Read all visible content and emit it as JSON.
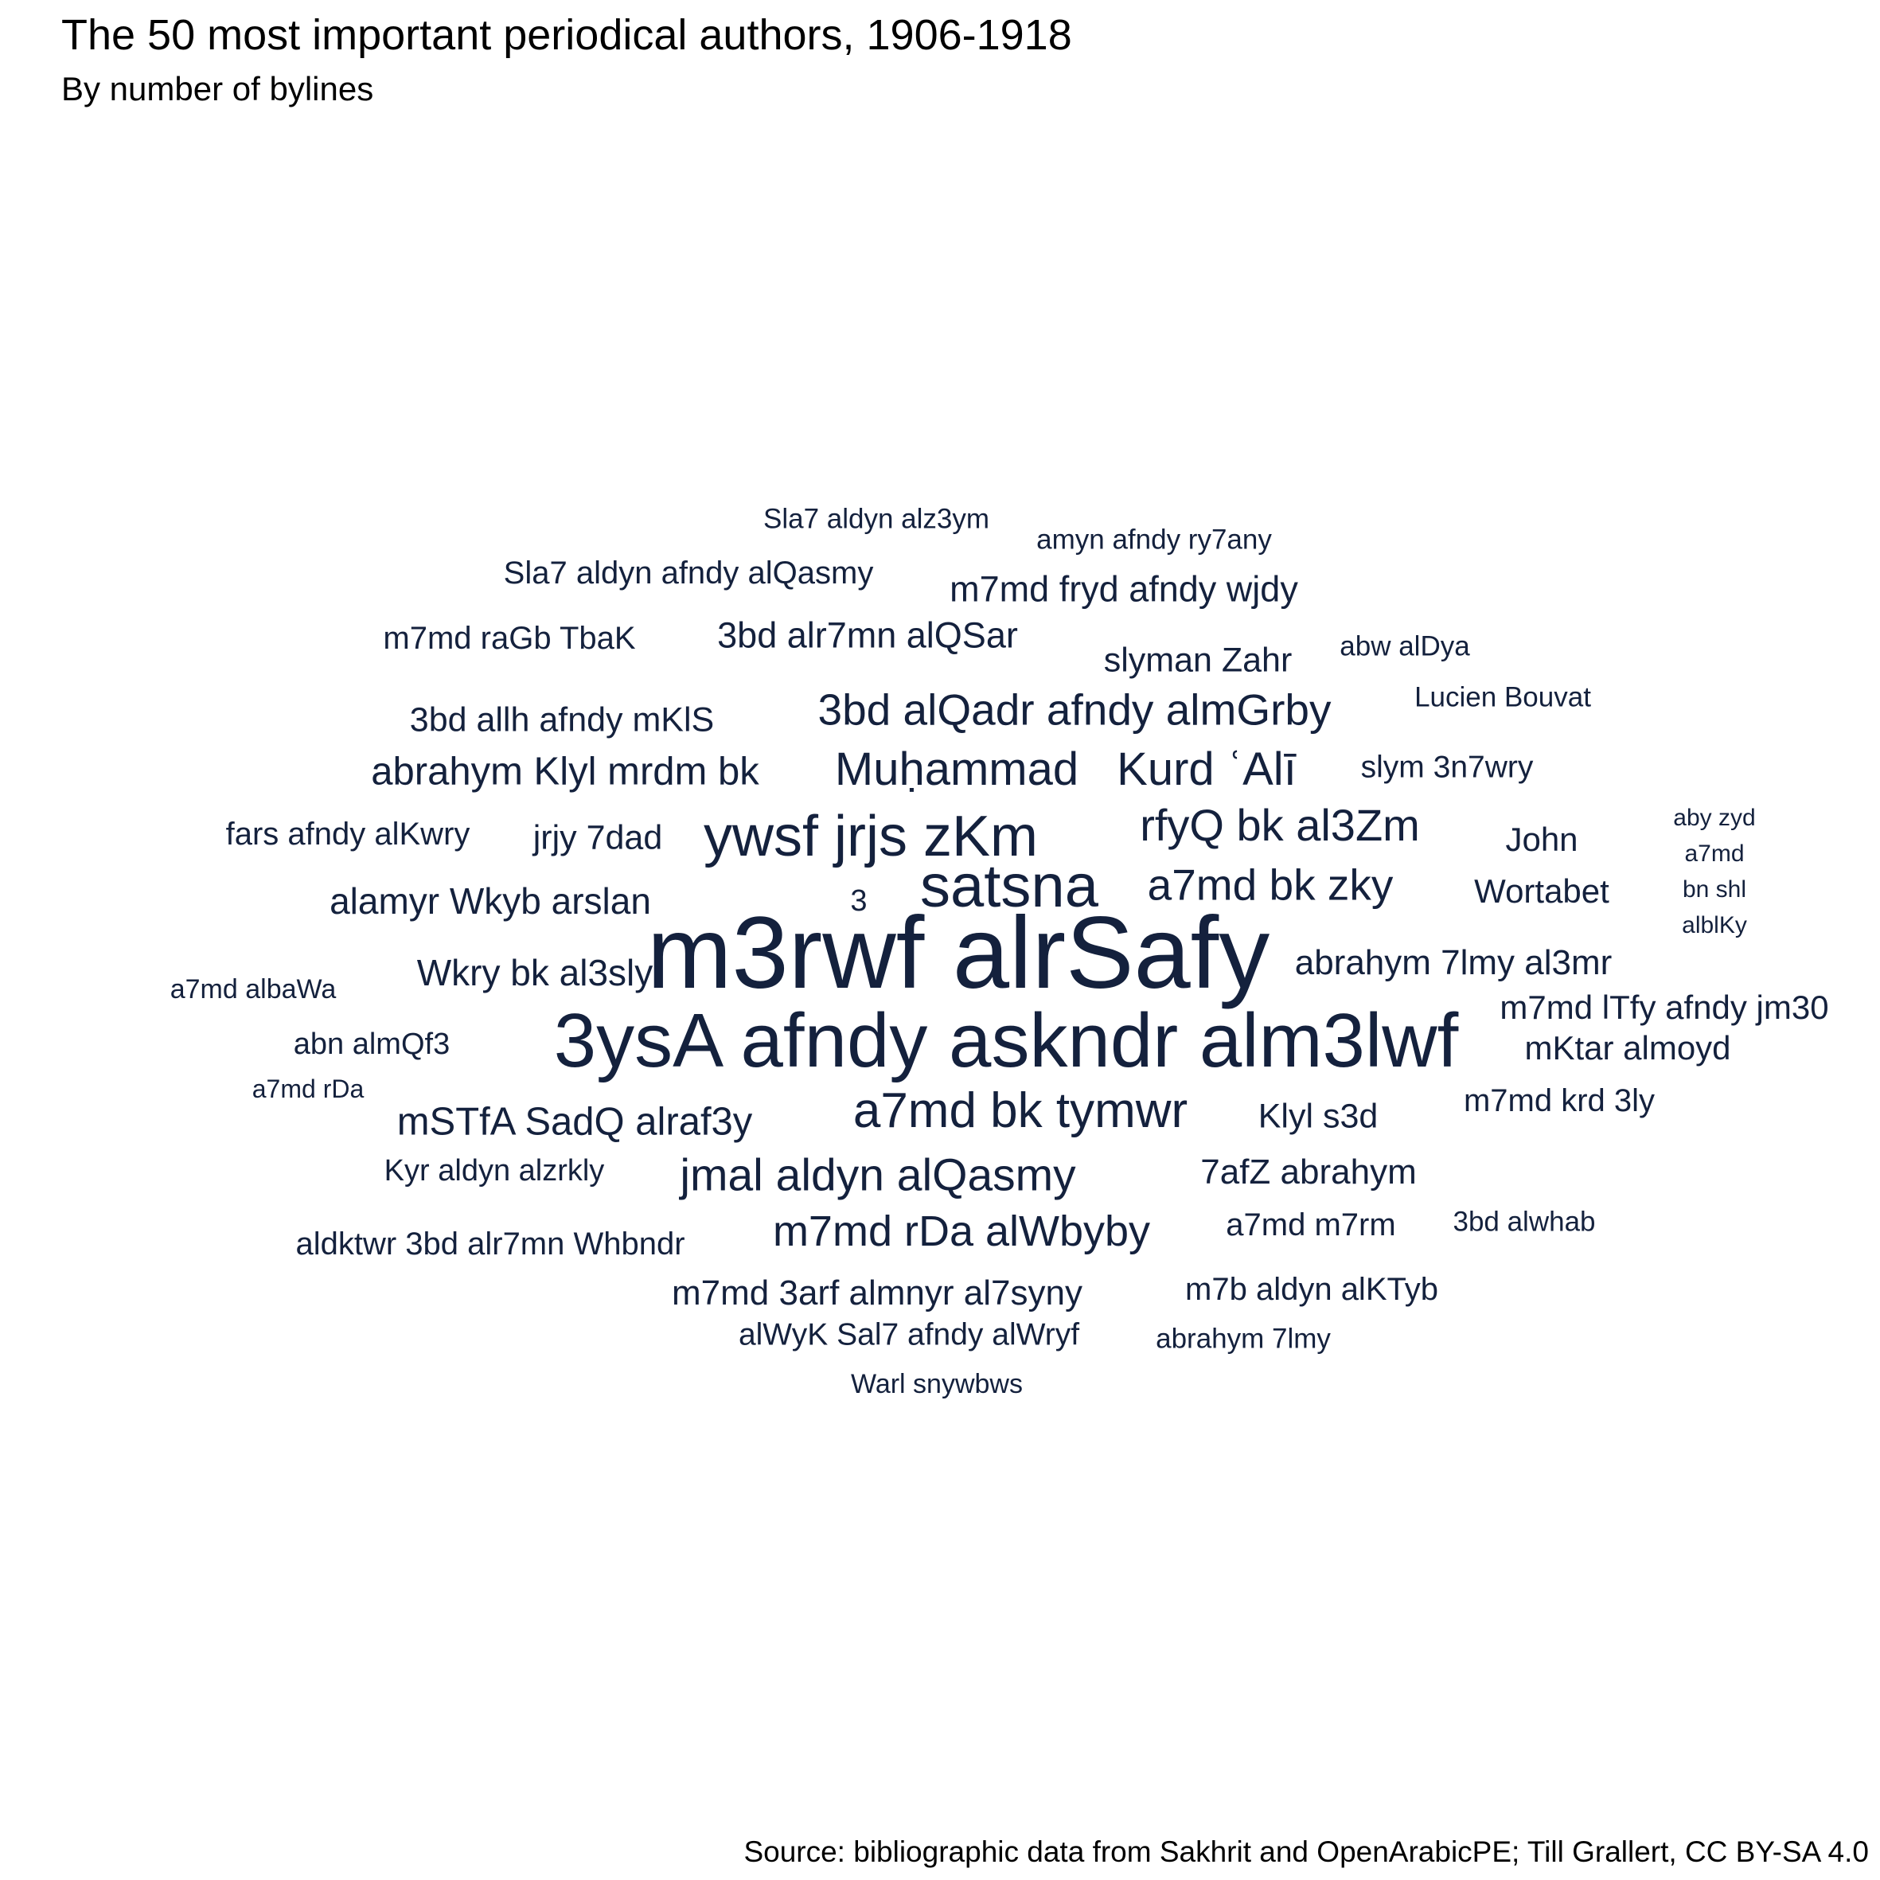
{
  "title": "The 50 most important periodical authors, 1906-1918",
  "subtitle": "By number of bylines",
  "caption": "Source: bibliographic data from Sakhrit and OpenArabicPE; Till Grallert, CC BY-SA 4.0",
  "colors": {
    "word": "#14213d",
    "text": "#000000",
    "background": "#ffffff"
  },
  "chart_data": {
    "type": "wordcloud",
    "words": [
      {
        "text": "m3rwf alrSafy"
      },
      {
        "text": "3ysA afndy askndr alm3lwf"
      },
      {
        "text": "satsna"
      },
      {
        "text": "ywsf jrjs zKm"
      },
      {
        "text": "a7md bk tymwr"
      },
      {
        "text": "Muḥammad"
      },
      {
        "text": "Kurd ʿAlī"
      },
      {
        "text": "jmal aldyn alQasmy"
      },
      {
        "text": "rfyQ bk al3Zm"
      },
      {
        "text": "3bd alQadr afndy almGrby"
      },
      {
        "text": "a7md bk zky"
      },
      {
        "text": "m7md rDa alWbyby"
      },
      {
        "text": "abrahym Klyl mrdm bk"
      },
      {
        "text": "mSTfA SadQ alraf3y"
      },
      {
        "text": "alamyr Wkyb arslan"
      },
      {
        "text": "Wkry bk al3sly"
      },
      {
        "text": "3bd alr7mn alQSar"
      },
      {
        "text": "m7md fryd afndy wjdy"
      },
      {
        "text": "abrahym 7lmy al3mr"
      },
      {
        "text": "m7md 3arf almnyr al7syny"
      },
      {
        "text": "7afZ abrahym"
      },
      {
        "text": "3bd allh afndy mKlS"
      },
      {
        "text": "slyman Zahr"
      },
      {
        "text": "jrjy 7dad"
      },
      {
        "text": "Klyl s3d"
      },
      {
        "text": "m7md lTfy afndy jm30"
      },
      {
        "text": "Wortabet"
      },
      {
        "text": "mKtar almoyd"
      },
      {
        "text": "John"
      },
      {
        "text": "fars afndy alKwry"
      },
      {
        "text": "m7md raGb TbaK"
      },
      {
        "text": "Sla7 aldyn afndy alQasmy"
      },
      {
        "text": "a7md m7rm"
      },
      {
        "text": "aldktwr 3bd alr7mn Whbndr"
      },
      {
        "text": "m7md krd 3ly"
      },
      {
        "text": "m7b aldyn alKTyb"
      },
      {
        "text": "slym 3n7wry"
      },
      {
        "text": "alWyK Sal7 afndy alWryf"
      },
      {
        "text": "abn almQf3"
      },
      {
        "text": "Kyr aldyn alzrkly"
      },
      {
        "text": "3"
      },
      {
        "text": "Lucien Bouvat"
      },
      {
        "text": "amyn afndy ry7any"
      },
      {
        "text": "Sla7 aldyn alz3ym"
      },
      {
        "text": "abw alDya"
      },
      {
        "text": "3bd alwhab"
      },
      {
        "text": "abrahym 7lmy"
      },
      {
        "text": "Warl snywbws"
      },
      {
        "text": "a7md albaWa"
      },
      {
        "text": "a7md rDa"
      },
      {
        "text": "aby zyd"
      },
      {
        "text": "a7md"
      },
      {
        "text": "bn shl"
      },
      {
        "text": "alblKy"
      }
    ]
  }
}
